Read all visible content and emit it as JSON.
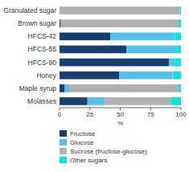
{
  "chart_data": {
    "type": "bar",
    "orientation": "horizontal",
    "stacked": true,
    "categories": [
      "Granulated sugar",
      "Brown sugar",
      "HFCS-42",
      "HFCS-55",
      "HFCS-90",
      "Honey",
      "Maple syrup",
      "Molasses"
    ],
    "series": [
      {
        "name": "Fructose",
        "color": "#1a3f6f",
        "values": [
          0,
          1,
          42,
          55,
          90,
          49,
          4,
          23
        ]
      },
      {
        "name": "Glucose",
        "color": "#56c0e8",
        "values": [
          0,
          0,
          53,
          41,
          5,
          44,
          4,
          14
        ]
      },
      {
        "name": "Sucrose (fructose-glucose)",
        "color": "#b0b0b0",
        "values": [
          99,
          97,
          0,
          0,
          0,
          1,
          90,
          55
        ]
      },
      {
        "name": "Other sugars",
        "color": "#00e5e5",
        "values": [
          1,
          2,
          5,
          4,
          5,
          6,
          2,
          8
        ]
      }
    ],
    "xlim": [
      0,
      100
    ],
    "xticks": [
      0,
      25,
      50,
      75,
      100
    ],
    "xlabel": "%",
    "grid": false,
    "legend": "bottom"
  }
}
